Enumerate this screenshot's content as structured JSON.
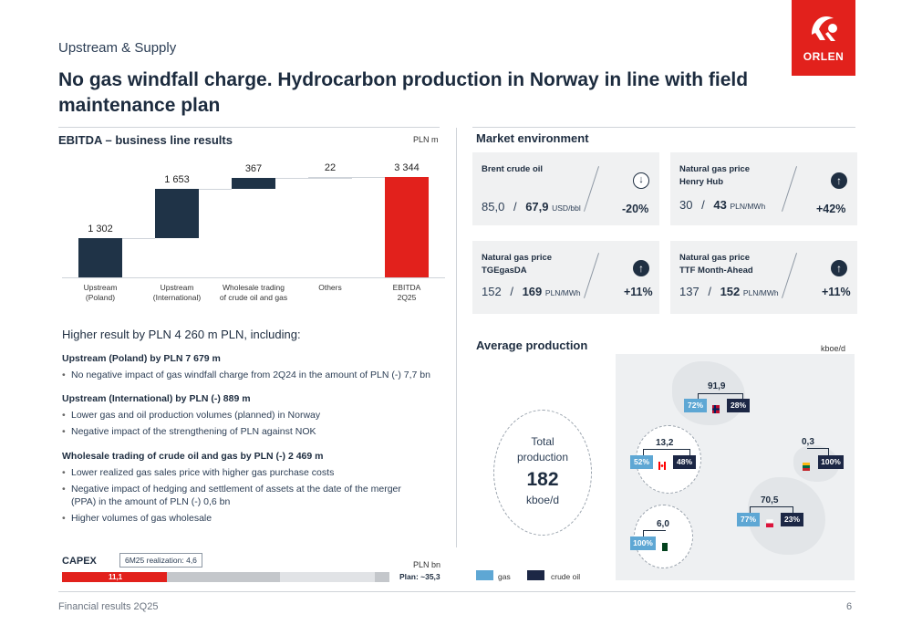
{
  "header": {
    "section": "Upstream & Supply",
    "headline": "No gas windfall charge. Hydrocarbon production in Norway in line with field maintenance plan",
    "logo_text": "ORLEN"
  },
  "ebitda": {
    "title": "EBITDA – business line results",
    "unit": "PLN m"
  },
  "chart_data": {
    "type": "bar",
    "subtype": "waterfall",
    "title": "EBITDA – business line results",
    "unit": "PLN m",
    "categories": [
      "Upstream (Poland)",
      "Upstream (International)",
      "Wholesale trading of crude oil and gas",
      "Others",
      "EBITDA 2Q25"
    ],
    "category_lines": [
      [
        "Upstream",
        "(Poland)"
      ],
      [
        "Upstream",
        "(International)"
      ],
      [
        "Wholesale trading",
        "of crude oil and gas"
      ],
      [
        "Others"
      ],
      [
        "EBITDA",
        "2Q25"
      ]
    ],
    "values": [
      1302,
      1653,
      367,
      22,
      3344
    ],
    "value_labels": [
      "1 302",
      "1 653",
      "367",
      "22",
      "3 344"
    ],
    "measure": [
      "relative",
      "relative",
      "relative",
      "relative",
      "total"
    ],
    "colors": {
      "increase": "#1f3347",
      "total": "#e2211c"
    }
  },
  "explanation": {
    "title": "Higher result by PLN 4 260 m PLN, including:",
    "groups": [
      {
        "head": "Upstream (Poland) by PLN 7 679 m",
        "items": [
          "No negative impact of gas windfall charge from 2Q24 in the amount of PLN (-) 7,7 bn"
        ]
      },
      {
        "head": "Upstream (International) by PLN (-) 889 m",
        "items": [
          "Lower gas and oil production volumes (planned) in Norway",
          "Negative impact of the strengthening of PLN against NOK"
        ]
      },
      {
        "head": "Wholesale trading of crude oil and gas by PLN (-) 2 469 m",
        "items": [
          "Lower realized gas sales price with higher gas purchase costs",
          "Negative impact of hedging and settlement of assets at the date of the merger (PPA) in the amount of PLN (-) 0,6 bn",
          "Higher volumes of gas wholesale"
        ]
      }
    ]
  },
  "market": {
    "title": "Market environment",
    "cards": [
      {
        "title1": "Brent crude oil",
        "title2": "",
        "prev": "85,0",
        "cur": "67,9",
        "unit": "USD/bbl",
        "change": "-20%",
        "direction": "down",
        "icon": "arrow-down-circle-icon"
      },
      {
        "title1": "Natural gas price",
        "title2": "Henry Hub",
        "prev": "30",
        "cur": "43",
        "unit": "PLN/MWh",
        "change": "+42%",
        "direction": "up",
        "icon": "arrow-up-circle-icon"
      },
      {
        "title1": "Natural gas price",
        "title2": "TGEgasDA",
        "prev": "152",
        "cur": "169",
        "unit": "PLN/MWh",
        "change": "+11%",
        "direction": "up",
        "icon": "arrow-up-circle-icon"
      },
      {
        "title1": "Natural gas price",
        "title2": "TTF Month-Ahead",
        "prev": "137",
        "cur": "152",
        "unit": "PLN/MWh",
        "change": "+11%",
        "direction": "up",
        "icon": "arrow-up-circle-icon"
      }
    ],
    "separator": "/"
  },
  "production": {
    "title": "Average production",
    "unit": "kboe/d",
    "total_label_line1": "Total",
    "total_label_line2": "production",
    "total_value": "182",
    "total_unit": "kboe/d",
    "regions": [
      {
        "name": "Norway",
        "value": "91,9",
        "gas": "72%",
        "oil": "28%",
        "flag": [
          "#ba0c2f",
          "#ffffff",
          "#00205b"
        ]
      },
      {
        "name": "Canada",
        "value": "13,2",
        "gas": "52%",
        "oil": "48%",
        "flag": [
          "#ff0000",
          "#ffffff",
          "#ff0000"
        ]
      },
      {
        "name": "Lithuania",
        "value": "0,3",
        "gas": "",
        "oil": "100%",
        "flag": [
          "#fdb913",
          "#006a44",
          "#c1272d"
        ]
      },
      {
        "name": "Poland",
        "value": "70,5",
        "gas": "77%",
        "oil": "23%",
        "flag": [
          "#ffffff",
          "#ffffff",
          "#dc143c"
        ]
      },
      {
        "name": "Pakistan",
        "value": "6,0",
        "gas": "100%",
        "oil": "",
        "flag": [
          "#ffffff",
          "#01411c",
          "#01411c"
        ]
      }
    ],
    "legend": [
      {
        "label": "gas",
        "color": "#5ea7d4"
      },
      {
        "label": "crude oil",
        "color": "#1c2745"
      }
    ]
  },
  "capex": {
    "title": "CAPEX",
    "realization": "6M25 realization: 4,6",
    "unit": "PLN bn",
    "realized_label": "11,1",
    "plan": "Plan: ~35,3"
  },
  "footer": {
    "left": "Financial results 2Q25",
    "page": "6"
  }
}
